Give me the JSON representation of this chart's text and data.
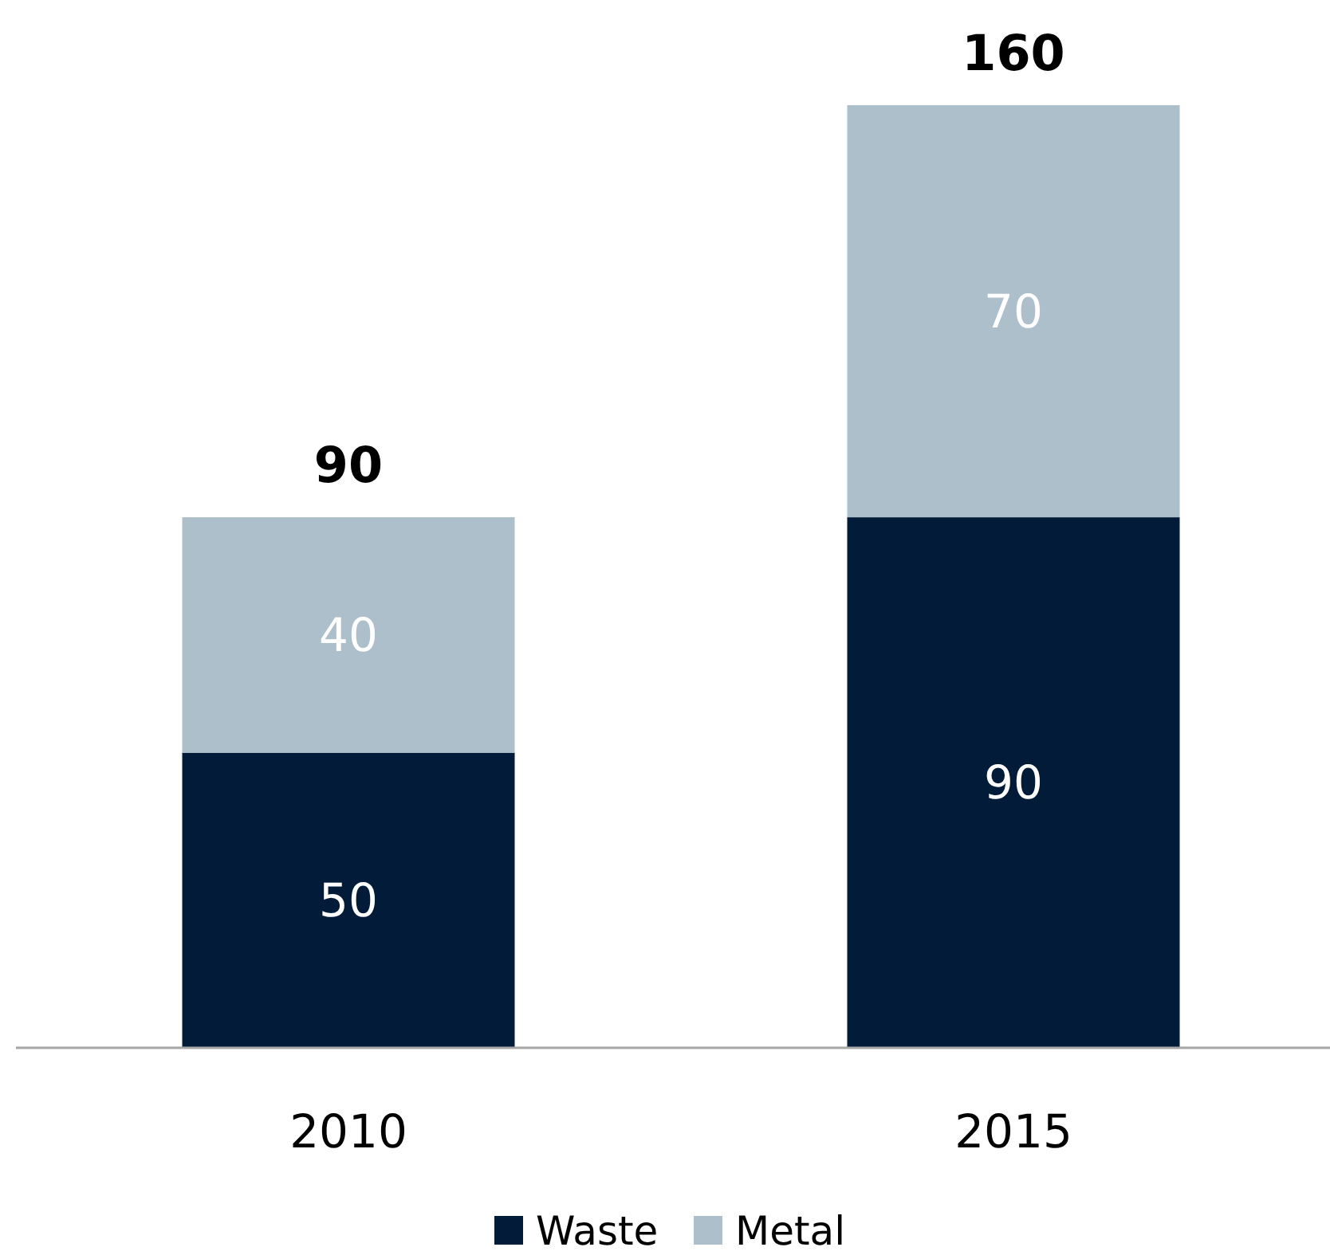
{
  "chart_data": {
    "type": "bar",
    "stacked": true,
    "categories": [
      "2010",
      "2015"
    ],
    "series": [
      {
        "name": "Waste",
        "color": "#011b38",
        "values": [
          50,
          90
        ]
      },
      {
        "name": "Metal",
        "color": "#adbfcb",
        "values": [
          40,
          70
        ]
      }
    ],
    "data_labels": true,
    "totals": [
      "90",
      "160"
    ],
    "legend": "bottom"
  }
}
